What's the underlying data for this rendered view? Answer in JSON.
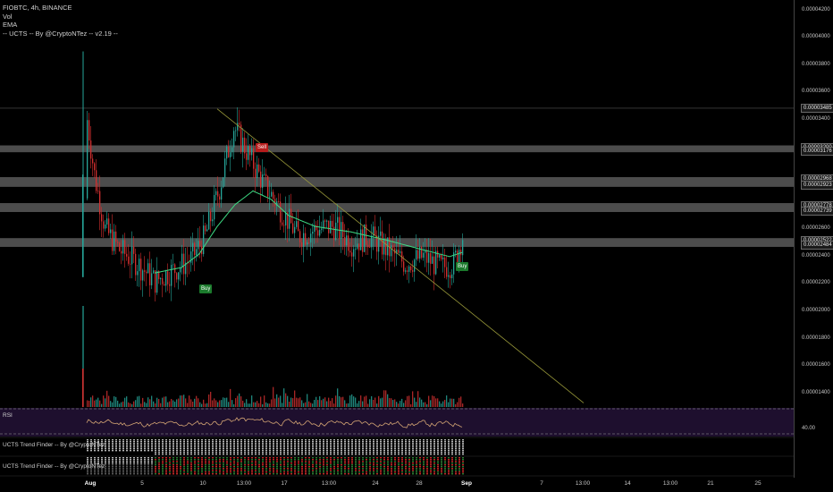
{
  "legend": {
    "symbol": "FIOBTC, 4h, BINANCE",
    "vol": "Vol",
    "ema": "EMA",
    "ucts": "-- UCTS -- By @CryptoNTez -- v2.19 --"
  },
  "price_axis": {
    "ticks": [
      {
        "text": "0.00004200",
        "value": 4.2e-05
      },
      {
        "text": "0.00004000",
        "value": 4e-05
      },
      {
        "text": "0.00003800",
        "value": 3.8e-05
      },
      {
        "text": "0.00003600",
        "value": 3.6e-05
      },
      {
        "text": "0.00003400",
        "value": 3.4e-05
      },
      {
        "text": "0.00002600",
        "value": 2.6e-05
      },
      {
        "text": "0.00002400",
        "value": 2.4e-05
      },
      {
        "text": "0.00002200",
        "value": 2.2e-05
      },
      {
        "text": "0.00002000",
        "value": 2e-05
      },
      {
        "text": "0.00001800",
        "value": 1.8e-05
      },
      {
        "text": "0.00001600",
        "value": 1.6e-05
      },
      {
        "text": "0.00001400",
        "value": 1.4e-05
      }
    ],
    "boxed": [
      {
        "text": "0.00003485",
        "value": 3.485e-05
      },
      {
        "text": "0.00003200",
        "value": 3.2e-05
      },
      {
        "text": "0.00003176",
        "value": 3.176e-05
      },
      {
        "text": "0.00002968",
        "value": 2.968e-05
      },
      {
        "text": "0.00002923",
        "value": 2.923e-05
      },
      {
        "text": "0.00002778",
        "value": 2.778e-05
      },
      {
        "text": "0.00002739",
        "value": 2.739e-05
      },
      {
        "text": "0.00002522",
        "value": 2.522e-05
      },
      {
        "text": "0.00002484",
        "value": 2.484e-05
      }
    ]
  },
  "zones": [
    {
      "top": 3.2e-05,
      "bottom": 3.176e-05
    },
    {
      "top": 2.968e-05,
      "bottom": 2.923e-05
    },
    {
      "top": 2.778e-05,
      "bottom": 2.739e-05
    },
    {
      "top": 2.522e-05,
      "bottom": 2.484e-05
    }
  ],
  "time_axis": [
    {
      "text": "Aug",
      "bold": true
    },
    {
      "text": "5",
      "bold": false
    },
    {
      "text": "10",
      "bold": false
    },
    {
      "text": "13:00",
      "bold": false
    },
    {
      "text": "17",
      "bold": false
    },
    {
      "text": "13:00",
      "bold": false
    },
    {
      "text": "24",
      "bold": false
    },
    {
      "text": "28",
      "bold": false
    },
    {
      "text": "Sep",
      "bold": true
    },
    {
      "text": "7",
      "bold": false
    },
    {
      "text": "13:00",
      "bold": false
    },
    {
      "text": "14",
      "bold": false
    },
    {
      "text": "13:00",
      "bold": false
    },
    {
      "text": "21",
      "bold": false
    },
    {
      "text": "25",
      "bold": false
    }
  ],
  "signals": {
    "sell": "Sell",
    "buy1": "Buy",
    "buy2": "Buy"
  },
  "rsi": {
    "title": "RSI",
    "level": "40.00",
    "level_value": 40
  },
  "trend_finder_1": "UCTS Trend Finder -- By @CryptoNTez",
  "trend_finder_2": "UCTS Trend Finder -- By @CryptoNTez",
  "colors": {
    "background": "#000000",
    "candle_up": "#26a69a",
    "candle_down": "#d32f2f",
    "ema": "#3ddc84",
    "trendline": "#9a9a3a",
    "zone": "#8a8a8a",
    "rsi_bg": "#1e0f2e",
    "rsi_line": "#d4a574"
  },
  "chart_data": {
    "type": "candlestick",
    "symbol": "FIOBTC",
    "timeframe": "4h",
    "exchange": "BINANCE",
    "ylim": [
      1.3e-05,
      4.25e-05
    ],
    "key_levels": {
      "high": 3.485e-05,
      "resistance_zones": [
        [
          3.176e-05,
          3.2e-05
        ],
        [
          2.923e-05,
          2.968e-05
        ],
        [
          2.739e-05,
          2.778e-05
        ],
        [
          2.484e-05,
          2.522e-05
        ]
      ]
    },
    "path": [
      {
        "x": 0,
        "p": 2.25e-05
      },
      {
        "x": 2,
        "p": 3.4e-05
      },
      {
        "x": 6,
        "p": 3e-05
      },
      {
        "x": 12,
        "p": 2.6e-05
      },
      {
        "x": 20,
        "p": 2.45e-05
      },
      {
        "x": 30,
        "p": 2.35e-05
      },
      {
        "x": 40,
        "p": 2.22e-05
      },
      {
        "x": 50,
        "p": 2.3e-05
      },
      {
        "x": 60,
        "p": 2.38e-05
      },
      {
        "x": 68,
        "p": 2.55e-05
      },
      {
        "x": 76,
        "p": 2.9e-05
      },
      {
        "x": 84,
        "p": 3.35e-05
      },
      {
        "x": 92,
        "p": 3.15e-05
      },
      {
        "x": 100,
        "p": 2.95e-05
      },
      {
        "x": 110,
        "p": 2.75e-05
      },
      {
        "x": 120,
        "p": 2.55e-05
      },
      {
        "x": 130,
        "p": 2.6e-05
      },
      {
        "x": 140,
        "p": 2.62e-05
      },
      {
        "x": 150,
        "p": 2.5e-05
      },
      {
        "x": 160,
        "p": 2.55e-05
      },
      {
        "x": 170,
        "p": 2.45e-05
      },
      {
        "x": 180,
        "p": 2.35e-05
      },
      {
        "x": 190,
        "p": 2.4e-05
      },
      {
        "x": 200,
        "p": 2.32e-05
      },
      {
        "x": 207,
        "p": 2.35e-05
      },
      {
        "x": 212,
        "p": 2.55e-05
      }
    ],
    "ema_path": [
      {
        "x": 40,
        "p": 2.28e-05
      },
      {
        "x": 55,
        "p": 2.32e-05
      },
      {
        "x": 65,
        "p": 2.42e-05
      },
      {
        "x": 75,
        "p": 2.62e-05
      },
      {
        "x": 85,
        "p": 2.78e-05
      },
      {
        "x": 95,
        "p": 2.88e-05
      },
      {
        "x": 105,
        "p": 2.82e-05
      },
      {
        "x": 115,
        "p": 2.7e-05
      },
      {
        "x": 130,
        "p": 2.62e-05
      },
      {
        "x": 150,
        "p": 2.58e-05
      },
      {
        "x": 170,
        "p": 2.52e-05
      },
      {
        "x": 190,
        "p": 2.45e-05
      },
      {
        "x": 205,
        "p": 2.4e-05
      },
      {
        "x": 212,
        "p": 2.43e-05
      }
    ],
    "trendline": [
      {
        "x": 75,
        "p": 3.48e-05
      },
      {
        "x": 280,
        "p": 1.33e-05
      }
    ]
  }
}
